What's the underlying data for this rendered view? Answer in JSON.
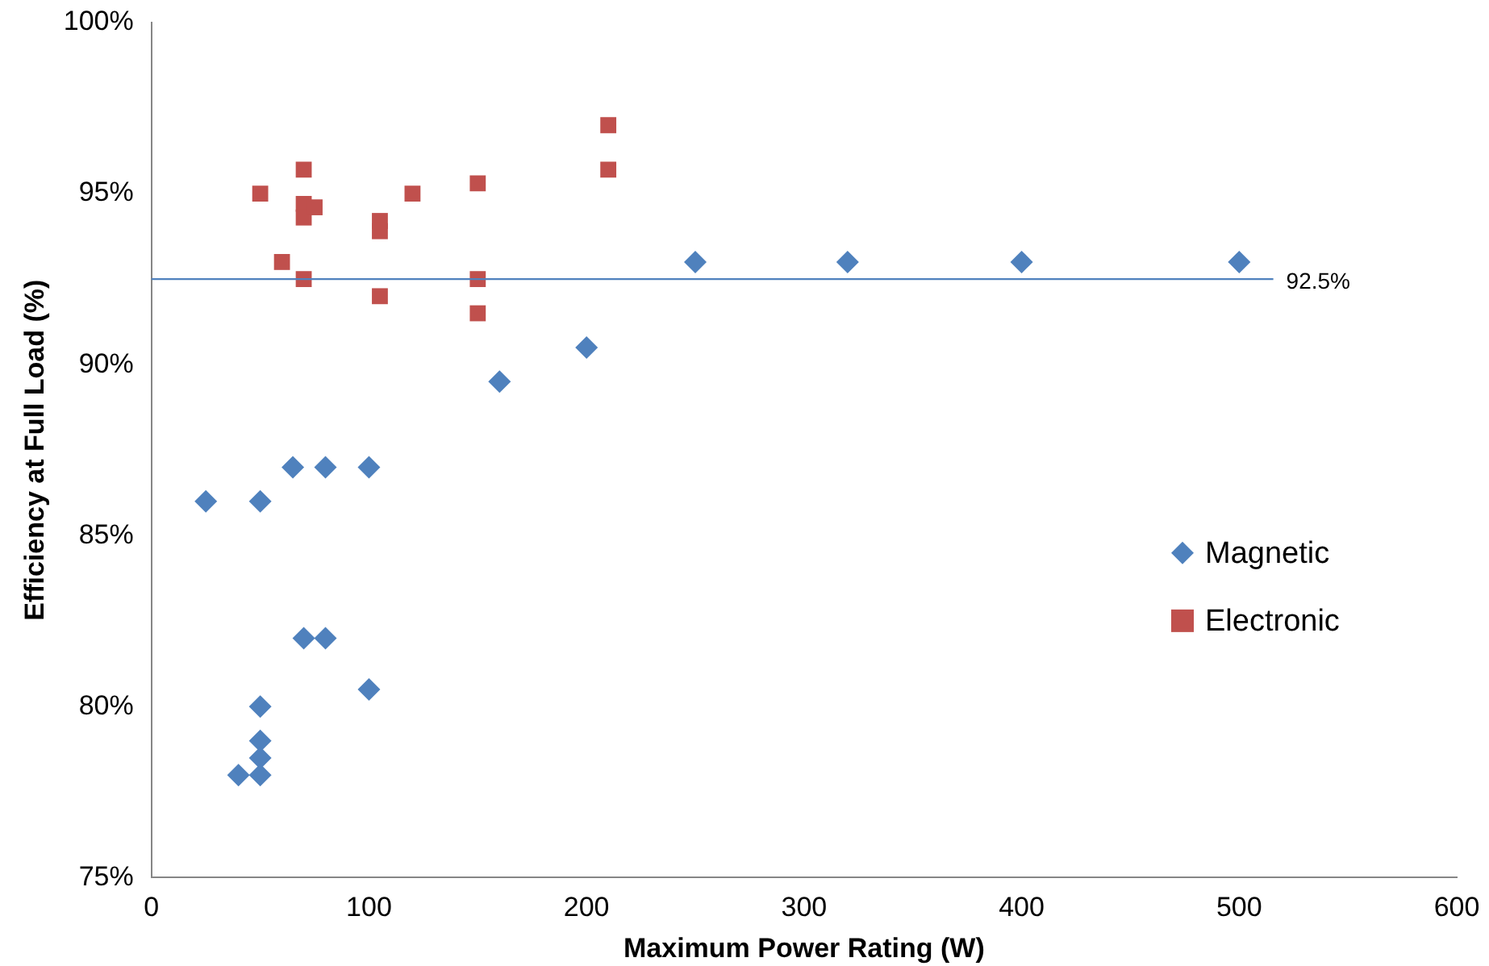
{
  "chart_data": {
    "type": "scatter",
    "xlabel": "Maximum Power Rating (W)",
    "ylabel": "Efficiency at Full Load (%)",
    "xlim": [
      0,
      600
    ],
    "xticks": [
      0,
      100,
      200,
      300,
      400,
      500,
      600
    ],
    "ylim": [
      75,
      100
    ],
    "yticks": [
      {
        "value": 75,
        "label": "75%"
      },
      {
        "value": 80,
        "label": "80%"
      },
      {
        "value": 85,
        "label": "85%"
      },
      {
        "value": 90,
        "label": "90%"
      },
      {
        "value": 95,
        "label": "95%"
      },
      {
        "value": 100,
        "label": "100%"
      }
    ],
    "grid": false,
    "legend": "right",
    "ref_lines": [
      {
        "axis": "y",
        "value": 92.5,
        "label": "92.5%",
        "color": "#4f81bd",
        "line_style": "solid"
      }
    ],
    "series": [
      {
        "name": "Magnetic",
        "color": "#4f81bd",
        "marker": "diamond",
        "x": [
          25,
          50,
          65,
          80,
          100,
          70,
          80,
          100,
          50,
          50,
          50,
          40,
          50,
          160,
          200,
          250,
          320,
          400,
          500
        ],
        "values": [
          86,
          86,
          87,
          87,
          87,
          82,
          82,
          80.5,
          80,
          79,
          78.5,
          78,
          78,
          89.5,
          90.5,
          93,
          93,
          93,
          93
        ]
      },
      {
        "name": "Electronic",
        "color": "#c0504d",
        "marker": "square",
        "x": [
          50,
          60,
          70,
          70,
          70,
          75,
          70,
          105,
          105,
          105,
          120,
          150,
          150,
          150,
          210,
          210
        ],
        "values": [
          95,
          93,
          95.7,
          94.7,
          94.3,
          94.6,
          92.5,
          94.2,
          93.9,
          92,
          95,
          95.3,
          92.5,
          91.5,
          97,
          95.7
        ]
      }
    ]
  }
}
